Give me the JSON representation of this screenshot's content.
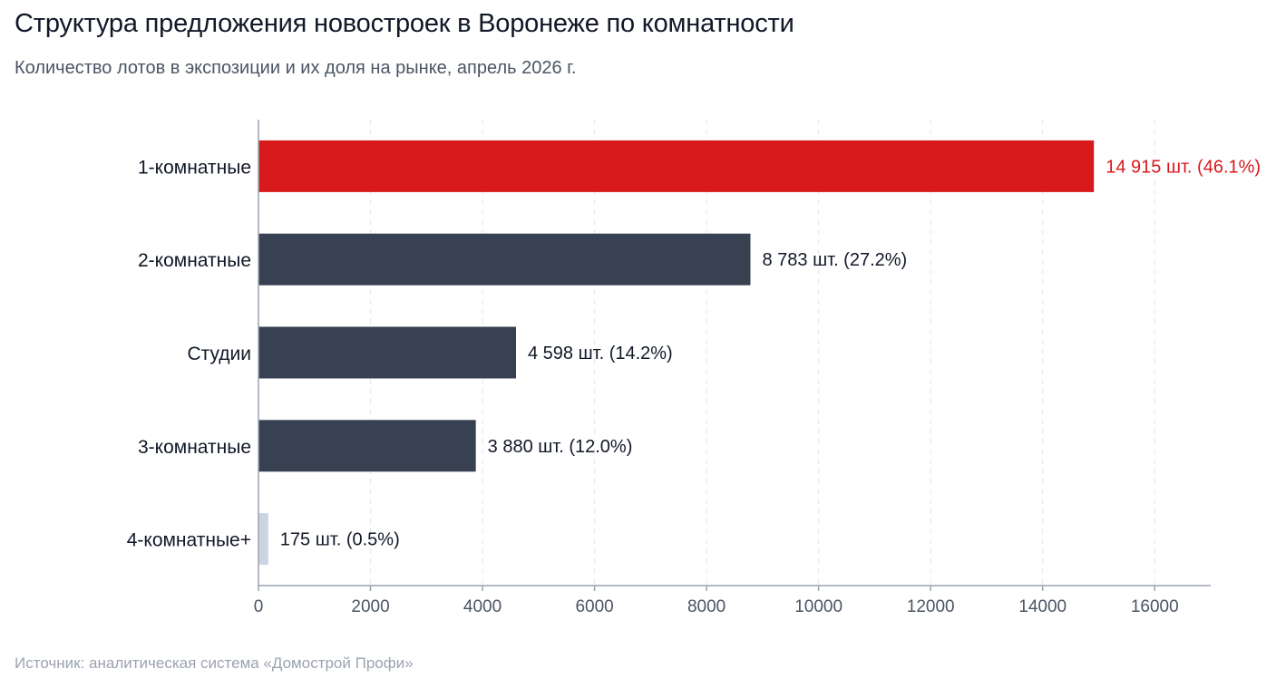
{
  "header": {
    "title": "Структура предложения новостроек в Воронеже по комнатности",
    "subtitle": "Количество лотов в экспозиции и их доля на рынке, апрель 2026 г."
  },
  "footer": {
    "source": "Источник: аналитическая система «Домострой Профи»"
  },
  "chart_data": {
    "type": "bar",
    "orientation": "horizontal",
    "categories": [
      "1-комнатные",
      "2-комнатные",
      "Студии",
      "3-комнатные",
      "4-комнатные+"
    ],
    "values": [
      14915,
      8783,
      4598,
      3880,
      175
    ],
    "data_labels": [
      "14 915 шт. (46.1%)",
      "8 783 шт. (27.2%)",
      "4 598 шт. (14.2%)",
      "3 880 шт. (12.0%)",
      "175 шт. (0.5%)"
    ],
    "bar_colors": [
      "#d7191c",
      "#374151",
      "#374151",
      "#374151",
      "#cbd5e1"
    ],
    "label_colors": [
      "#d7191c",
      "#111827",
      "#111827",
      "#111827",
      "#111827"
    ],
    "xlim": [
      0,
      17000
    ],
    "xticks": [
      0,
      2000,
      4000,
      6000,
      8000,
      10000,
      12000,
      14000,
      16000
    ],
    "grid": "vertical-dashed",
    "xlabel": "",
    "ylabel": ""
  }
}
